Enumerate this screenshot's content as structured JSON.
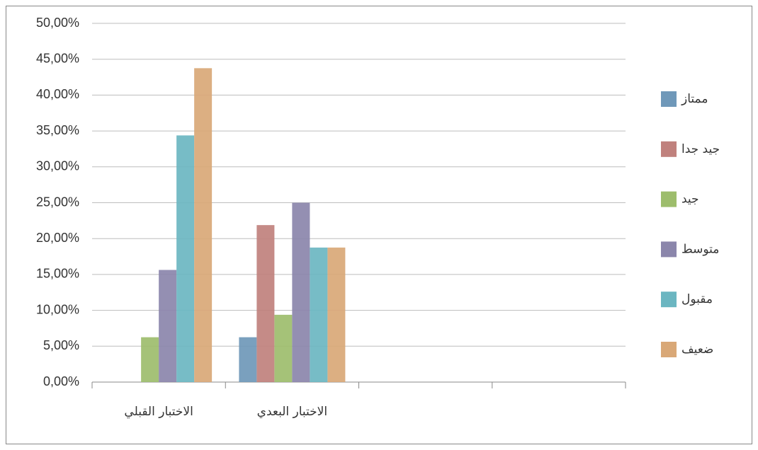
{
  "chart_data": {
    "type": "bar",
    "categories": [
      "الاختبار القبلي",
      "الاختبار البعدي",
      null,
      null
    ],
    "series": [
      {
        "name": "ممتاز",
        "color": "#6f98b9",
        "values": [
          0,
          6.25,
          null,
          null
        ]
      },
      {
        "name": "جيد جدا",
        "color": "#c0817d",
        "values": [
          0,
          21.88,
          null,
          null
        ]
      },
      {
        "name": "جيد",
        "color": "#9dbd6c",
        "values": [
          6.25,
          9.38,
          null,
          null
        ]
      },
      {
        "name": "متوسط",
        "color": "#8b86ab",
        "values": [
          15.63,
          25,
          null,
          null
        ]
      },
      {
        "name": "مقبول",
        "color": "#6bb6c1",
        "values": [
          34.38,
          18.75,
          null,
          null
        ]
      },
      {
        "name": "ضعيف",
        "color": "#d9a877",
        "values": [
          43.75,
          18.75,
          null,
          null
        ]
      }
    ],
    "ylim": [
      0,
      50
    ],
    "yticks": [
      {
        "value": 0,
        "label": "0,00%"
      },
      {
        "value": 5,
        "label": "5,00%"
      },
      {
        "value": 10,
        "label": "10,00%"
      },
      {
        "value": 15,
        "label": "15,00%"
      },
      {
        "value": 20,
        "label": "20,00%"
      },
      {
        "value": 25,
        "label": "25,00%"
      },
      {
        "value": 30,
        "label": "30,00%"
      },
      {
        "value": 35,
        "label": "35,00%"
      },
      {
        "value": 40,
        "label": "40,00%"
      },
      {
        "value": 45,
        "label": "45,00%"
      },
      {
        "value": 50,
        "label": "50,00%"
      }
    ],
    "grid": true,
    "legend": "right"
  }
}
